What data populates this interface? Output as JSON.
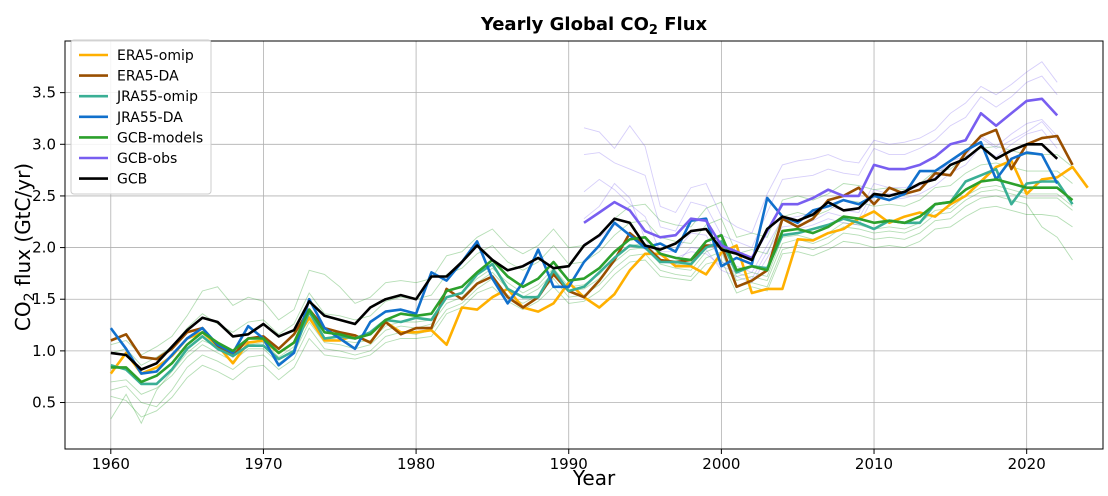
{
  "chart_data": {
    "type": "line",
    "title": "Yearly Global CO",
    "title_subscript": "2",
    "title_suffix": " Flux",
    "xlabel": "Year",
    "ylabel_prefix": "CO",
    "ylabel_subscript": "2",
    "ylabel_suffix": "  flux (GtC/yr)",
    "xlim": [
      1957,
      2025
    ],
    "ylim": [
      0.05,
      4.0
    ],
    "xticks": [
      1960,
      1970,
      1980,
      1990,
      2000,
      2010,
      2020
    ],
    "yticks": [
      0.5,
      1.0,
      1.5,
      2.0,
      2.5,
      3.0,
      3.5
    ],
    "xtick_labels": [
      "1960",
      "1970",
      "1980",
      "1990",
      "2000",
      "2010",
      "2020"
    ],
    "ytick_labels": [
      "0.5",
      "1.0",
      "1.5",
      "2.0",
      "2.5",
      "3.0",
      "3.5"
    ],
    "grid": true,
    "legend_position": "top-left",
    "series": [
      {
        "name": "ERA5-omip",
        "color": "#FFB000",
        "start": 1960,
        "values": [
          0.78,
          0.98,
          0.78,
          0.84,
          0.95,
          1.12,
          1.18,
          1.05,
          0.88,
          1.08,
          1.1,
          0.98,
          1.08,
          1.32,
          1.1,
          1.1,
          1.15,
          1.08,
          1.28,
          1.18,
          1.18,
          1.2,
          1.06,
          1.42,
          1.4,
          1.52,
          1.6,
          1.42,
          1.38,
          1.46,
          1.66,
          1.52,
          1.42,
          1.55,
          1.78,
          1.94,
          1.94,
          1.82,
          1.82,
          1.74,
          1.95,
          2.02,
          1.56,
          1.6,
          1.6,
          2.08,
          2.07,
          2.14,
          2.18,
          2.28,
          2.35,
          2.24,
          2.3,
          2.34,
          2.3,
          2.42,
          2.5,
          2.64,
          2.78,
          2.84,
          2.52,
          2.66,
          2.68,
          2.78,
          2.58
        ]
      },
      {
        "name": "ERA5-DA",
        "color": "#994F00",
        "start": 1960,
        "values": [
          1.1,
          1.16,
          0.94,
          0.92,
          1.02,
          1.18,
          1.22,
          1.05,
          0.95,
          1.12,
          1.14,
          1.02,
          1.16,
          1.4,
          1.22,
          1.18,
          1.15,
          1.08,
          1.28,
          1.16,
          1.22,
          1.22,
          1.6,
          1.5,
          1.65,
          1.72,
          1.52,
          1.42,
          1.52,
          1.74,
          1.58,
          1.52,
          1.68,
          1.88,
          2.14,
          2.02,
          1.88,
          1.86,
          1.88,
          2.02,
          2.02,
          1.62,
          1.68,
          1.78,
          2.28,
          2.2,
          2.28,
          2.46,
          2.5,
          2.58,
          2.42,
          2.58,
          2.52,
          2.56,
          2.72,
          2.7,
          2.92,
          3.08,
          3.14,
          2.76,
          3.0,
          3.06,
          3.08,
          2.8
        ]
      },
      {
        "name": "JRA55-omip",
        "color": "#3AAF95",
        "start": 1960,
        "values": [
          0.86,
          0.82,
          0.68,
          0.68,
          0.82,
          1.02,
          1.14,
          1.02,
          0.95,
          1.05,
          1.05,
          0.92,
          1.0,
          1.38,
          1.12,
          1.14,
          1.12,
          1.18,
          1.3,
          1.28,
          1.32,
          1.3,
          1.52,
          1.56,
          1.74,
          1.84,
          1.6,
          1.52,
          1.52,
          1.78,
          1.58,
          1.62,
          1.76,
          1.9,
          2.02,
          2.0,
          1.86,
          1.86,
          1.84,
          2.0,
          2.06,
          1.76,
          1.82,
          1.8,
          2.12,
          2.14,
          2.18,
          2.22,
          2.28,
          2.24,
          2.18,
          2.26,
          2.24,
          2.24,
          2.42,
          2.44,
          2.64,
          2.7,
          2.76,
          2.42,
          2.62,
          2.64,
          2.64,
          2.42
        ]
      },
      {
        "name": "JRA55-DA",
        "color": "#1170CC",
        "start": 1960,
        "values": [
          1.22,
          1.02,
          0.78,
          0.8,
          0.96,
          1.12,
          1.22,
          1.06,
          0.98,
          1.24,
          1.12,
          0.86,
          0.98,
          1.5,
          1.22,
          1.12,
          1.02,
          1.28,
          1.38,
          1.4,
          1.36,
          1.76,
          1.68,
          1.86,
          2.06,
          1.7,
          1.46,
          1.66,
          1.98,
          1.62,
          1.62,
          1.86,
          2.02,
          2.24,
          2.12,
          2.0,
          2.04,
          1.96,
          2.26,
          2.28,
          1.82,
          1.9,
          1.84,
          2.48,
          2.3,
          2.24,
          2.36,
          2.4,
          2.46,
          2.42,
          2.5,
          2.46,
          2.52,
          2.74,
          2.74,
          2.84,
          2.94,
          3.02,
          2.66,
          2.86,
          2.92,
          2.9,
          2.62
        ]
      },
      {
        "name": "GCB-models",
        "color": "#2CA02C",
        "start": 1960,
        "values": [
          0.84,
          0.84,
          0.7,
          0.76,
          0.88,
          1.06,
          1.18,
          1.08,
          1.0,
          1.12,
          1.12,
          0.98,
          1.08,
          1.4,
          1.18,
          1.16,
          1.12,
          1.16,
          1.3,
          1.36,
          1.34,
          1.36,
          1.58,
          1.62,
          1.76,
          1.88,
          1.72,
          1.62,
          1.7,
          1.86,
          1.68,
          1.7,
          1.8,
          1.96,
          2.08,
          2.1,
          1.94,
          1.9,
          1.88,
          2.06,
          2.12,
          1.78,
          1.82,
          1.78,
          2.16,
          2.18,
          2.14,
          2.2,
          2.3,
          2.28,
          2.24,
          2.26,
          2.24,
          2.3,
          2.42,
          2.44,
          2.56,
          2.64,
          2.66,
          2.62,
          2.58,
          2.58,
          2.58,
          2.46
        ]
      },
      {
        "name": "GCB-obs",
        "color": "#785EF0",
        "start": 1991,
        "values": [
          2.24,
          2.34,
          2.44,
          2.36,
          2.16,
          2.1,
          2.12,
          2.28,
          2.26,
          2.02,
          1.96,
          1.9,
          2.16,
          2.42,
          2.42,
          2.48,
          2.56,
          2.5,
          2.5,
          2.8,
          2.76,
          2.76,
          2.8,
          2.88,
          3.0,
          3.04,
          3.3,
          3.18,
          3.3,
          3.42,
          3.44,
          3.28
        ]
      },
      {
        "name": "GCB",
        "color": "#000000",
        "start": 1960,
        "values": [
          0.98,
          0.96,
          0.82,
          0.88,
          1.04,
          1.2,
          1.32,
          1.28,
          1.14,
          1.16,
          1.26,
          1.14,
          1.2,
          1.48,
          1.34,
          1.3,
          1.26,
          1.42,
          1.5,
          1.54,
          1.5,
          1.72,
          1.72,
          1.86,
          2.02,
          1.88,
          1.78,
          1.82,
          1.9,
          1.8,
          1.82,
          2.02,
          2.12,
          2.28,
          2.24,
          2.02,
          1.98,
          2.04,
          2.16,
          2.18,
          1.98,
          1.94,
          1.88,
          2.18,
          2.3,
          2.26,
          2.32,
          2.44,
          2.36,
          2.38,
          2.52,
          2.5,
          2.54,
          2.62,
          2.66,
          2.8,
          2.86,
          2.98,
          2.86,
          2.94,
          3.0,
          3.0,
          2.86
        ]
      }
    ],
    "background_series_green": [
      {
        "start": 1960,
        "values": [
          0.56,
          0.52,
          0.36,
          0.42,
          0.55,
          0.74,
          0.86,
          0.8,
          0.72,
          0.84,
          0.86,
          0.72,
          0.84,
          1.12,
          0.96,
          0.94,
          0.92,
          0.96,
          1.08,
          1.12,
          1.12,
          1.14,
          1.36,
          1.42,
          1.56,
          1.62,
          1.48,
          1.4,
          1.48,
          1.62,
          1.46,
          1.48,
          1.58,
          1.74,
          1.86,
          1.88,
          1.72,
          1.7,
          1.68,
          1.84,
          1.88,
          1.56,
          1.62,
          1.58,
          1.94,
          1.96,
          1.92,
          1.98,
          2.06,
          2.04,
          2.0,
          2.02,
          2.0,
          2.06,
          2.18,
          2.2,
          2.3,
          2.38,
          2.4,
          2.36,
          2.32,
          2.32,
          2.3,
          2.2
        ]
      },
      {
        "start": 1960,
        "values": [
          0.34,
          0.58,
          0.3,
          0.62,
          0.8,
          0.98,
          1.1,
          1.04,
          0.96,
          1.06,
          1.08,
          0.94,
          1.04,
          1.34,
          1.12,
          1.1,
          1.08,
          1.1,
          1.24,
          1.28,
          1.28,
          1.3,
          1.52,
          1.56,
          1.7,
          1.8,
          1.66,
          1.56,
          1.64,
          1.8,
          1.62,
          1.64,
          1.74,
          1.9,
          2.02,
          2.04,
          1.88,
          1.84,
          1.82,
          2.0,
          2.06,
          1.72,
          1.76,
          1.72,
          2.1,
          2.12,
          2.08,
          2.14,
          2.24,
          2.22,
          2.18,
          2.2,
          2.18,
          2.24,
          2.36,
          2.38,
          2.5,
          2.58,
          2.6,
          2.56,
          2.52,
          2.52,
          2.52,
          2.4
        ]
      },
      {
        "start": 1960,
        "values": [
          0.7,
          0.72,
          0.58,
          0.64,
          0.76,
          0.94,
          1.06,
          0.98,
          0.9,
          1.02,
          1.02,
          0.88,
          0.98,
          1.28,
          1.08,
          1.06,
          1.02,
          1.06,
          1.2,
          1.24,
          1.22,
          1.26,
          1.46,
          1.52,
          1.66,
          1.76,
          1.6,
          1.52,
          1.6,
          1.76,
          1.58,
          1.6,
          1.7,
          1.86,
          1.98,
          2.0,
          1.84,
          1.8,
          1.78,
          1.96,
          2.02,
          1.68,
          1.72,
          1.68,
          2.04,
          2.08,
          2.04,
          2.1,
          2.2,
          2.18,
          2.14,
          2.16,
          2.14,
          2.2,
          2.32,
          2.34,
          2.46,
          2.54,
          2.56,
          2.52,
          2.48,
          2.48,
          2.48,
          2.36
        ]
      },
      {
        "start": 1960,
        "values": [
          0.98,
          1.02,
          0.86,
          0.94,
          1.04,
          1.22,
          1.36,
          1.26,
          1.18,
          1.28,
          1.3,
          1.16,
          1.26,
          1.56,
          1.36,
          1.34,
          1.3,
          1.34,
          1.48,
          1.52,
          1.5,
          1.54,
          1.74,
          1.8,
          1.94,
          2.02,
          1.86,
          1.78,
          1.86,
          2.02,
          1.84,
          1.86,
          1.96,
          2.12,
          2.24,
          2.26,
          2.1,
          2.06,
          2.04,
          2.22,
          2.28,
          1.94,
          1.98,
          1.94,
          2.3,
          2.34,
          2.3,
          2.36,
          2.46,
          2.44,
          2.4,
          2.42,
          2.4,
          2.46,
          2.58,
          2.6,
          2.72,
          2.8,
          2.82,
          2.78,
          2.74,
          2.74,
          2.74,
          2.62
        ]
      },
      {
        "start": 1960,
        "values": [
          1.06,
          1.1,
          0.96,
          1.04,
          1.14,
          1.34,
          1.58,
          1.62,
          1.44,
          1.52,
          1.48,
          1.3,
          1.4,
          1.78,
          1.74,
          1.62,
          1.46,
          1.52,
          1.66,
          1.68,
          1.66,
          1.7,
          1.92,
          1.96,
          2.1,
          2.18,
          2.02,
          1.94,
          2.02,
          2.18,
          2.0,
          2.02,
          2.12,
          2.28,
          2.4,
          2.42,
          2.26,
          2.22,
          2.2,
          2.38,
          2.44,
          2.1,
          2.14,
          2.1,
          2.46,
          2.5,
          2.46,
          2.52,
          2.62,
          2.6,
          2.56,
          2.58,
          2.56,
          2.62,
          2.74,
          2.76,
          2.88,
          2.96,
          2.98,
          2.94,
          2.9,
          2.9,
          2.9,
          2.78
        ]
      },
      {
        "start": 1960,
        "values": [
          0.62,
          0.66,
          0.5,
          0.46,
          0.62,
          0.84,
          0.96,
          0.9,
          0.82,
          0.94,
          0.96,
          0.82,
          0.92,
          1.22,
          1.02,
          1.0,
          0.96,
          1.0,
          1.14,
          1.18,
          1.16,
          1.2,
          1.4,
          1.46,
          1.6,
          1.7,
          1.54,
          1.46,
          1.54,
          1.7,
          1.52,
          1.54,
          1.64,
          1.8,
          1.92,
          1.94,
          1.78,
          1.74,
          1.72,
          1.9,
          1.96,
          1.62,
          1.66,
          1.62,
          1.98,
          2.02,
          1.98,
          2.04,
          2.14,
          2.12,
          2.08,
          2.1,
          2.08,
          2.14,
          2.26,
          2.28,
          2.4,
          2.48,
          2.5,
          2.46,
          2.42,
          2.2,
          2.1,
          1.88
        ]
      }
    ],
    "background_series_purple": [
      {
        "start": 1991,
        "values": [
          3.16,
          3.12,
          2.96,
          3.18,
          2.98,
          2.4,
          2.34,
          2.58,
          2.62,
          2.3,
          2.2,
          2.14,
          2.52,
          2.8,
          2.84,
          2.86,
          2.9,
          2.84,
          2.82,
          3.04,
          3.0,
          3.02,
          3.06,
          3.14,
          3.3,
          3.4,
          3.56,
          3.48,
          3.58,
          3.7,
          3.8,
          3.6
        ]
      },
      {
        "start": 1991,
        "values": [
          2.9,
          2.92,
          2.82,
          2.76,
          2.7,
          2.2,
          2.16,
          2.44,
          2.4,
          2.12,
          2.06,
          2.0,
          2.34,
          2.66,
          2.68,
          2.7,
          2.76,
          2.72,
          2.7,
          2.96,
          2.9,
          2.9,
          2.96,
          3.04,
          3.18,
          3.26,
          3.46,
          3.36,
          3.46,
          3.6,
          3.66,
          3.48
        ]
      },
      {
        "start": 1991,
        "values": [
          2.54,
          2.66,
          2.56,
          2.42,
          2.3,
          1.96,
          1.96,
          2.14,
          2.12,
          1.86,
          1.82,
          1.76,
          2.02,
          2.28,
          2.3,
          2.34,
          2.4,
          2.36,
          2.34,
          2.62,
          2.58,
          2.58,
          2.62,
          2.7,
          2.84,
          2.88,
          3.08,
          2.98,
          3.1,
          3.2,
          3.24,
          3.08
        ]
      },
      {
        "start": 1991,
        "values": [
          2.28,
          2.4,
          2.62,
          2.48,
          2.08,
          1.86,
          1.84,
          2.0,
          1.98,
          1.78,
          1.72,
          1.66,
          1.9,
          2.16,
          2.18,
          2.22,
          2.28,
          2.24,
          2.22,
          2.5,
          2.46,
          2.48,
          2.52,
          2.6,
          2.72,
          2.8,
          2.98,
          2.88,
          3.0,
          3.1,
          3.14,
          2.96
        ]
      },
      {
        "start": 1991,
        "values": [
          2.04,
          2.1,
          2.22,
          2.14,
          1.98,
          1.92,
          1.9,
          1.96,
          1.94,
          1.82,
          1.76,
          1.7,
          1.96,
          2.2,
          2.22,
          2.26,
          2.34,
          2.3,
          2.28,
          2.56,
          2.52,
          2.54,
          2.6,
          2.68,
          2.84,
          2.92,
          3.06,
          2.96,
          3.04,
          3.12,
          3.22,
          3.04
        ]
      }
    ]
  }
}
